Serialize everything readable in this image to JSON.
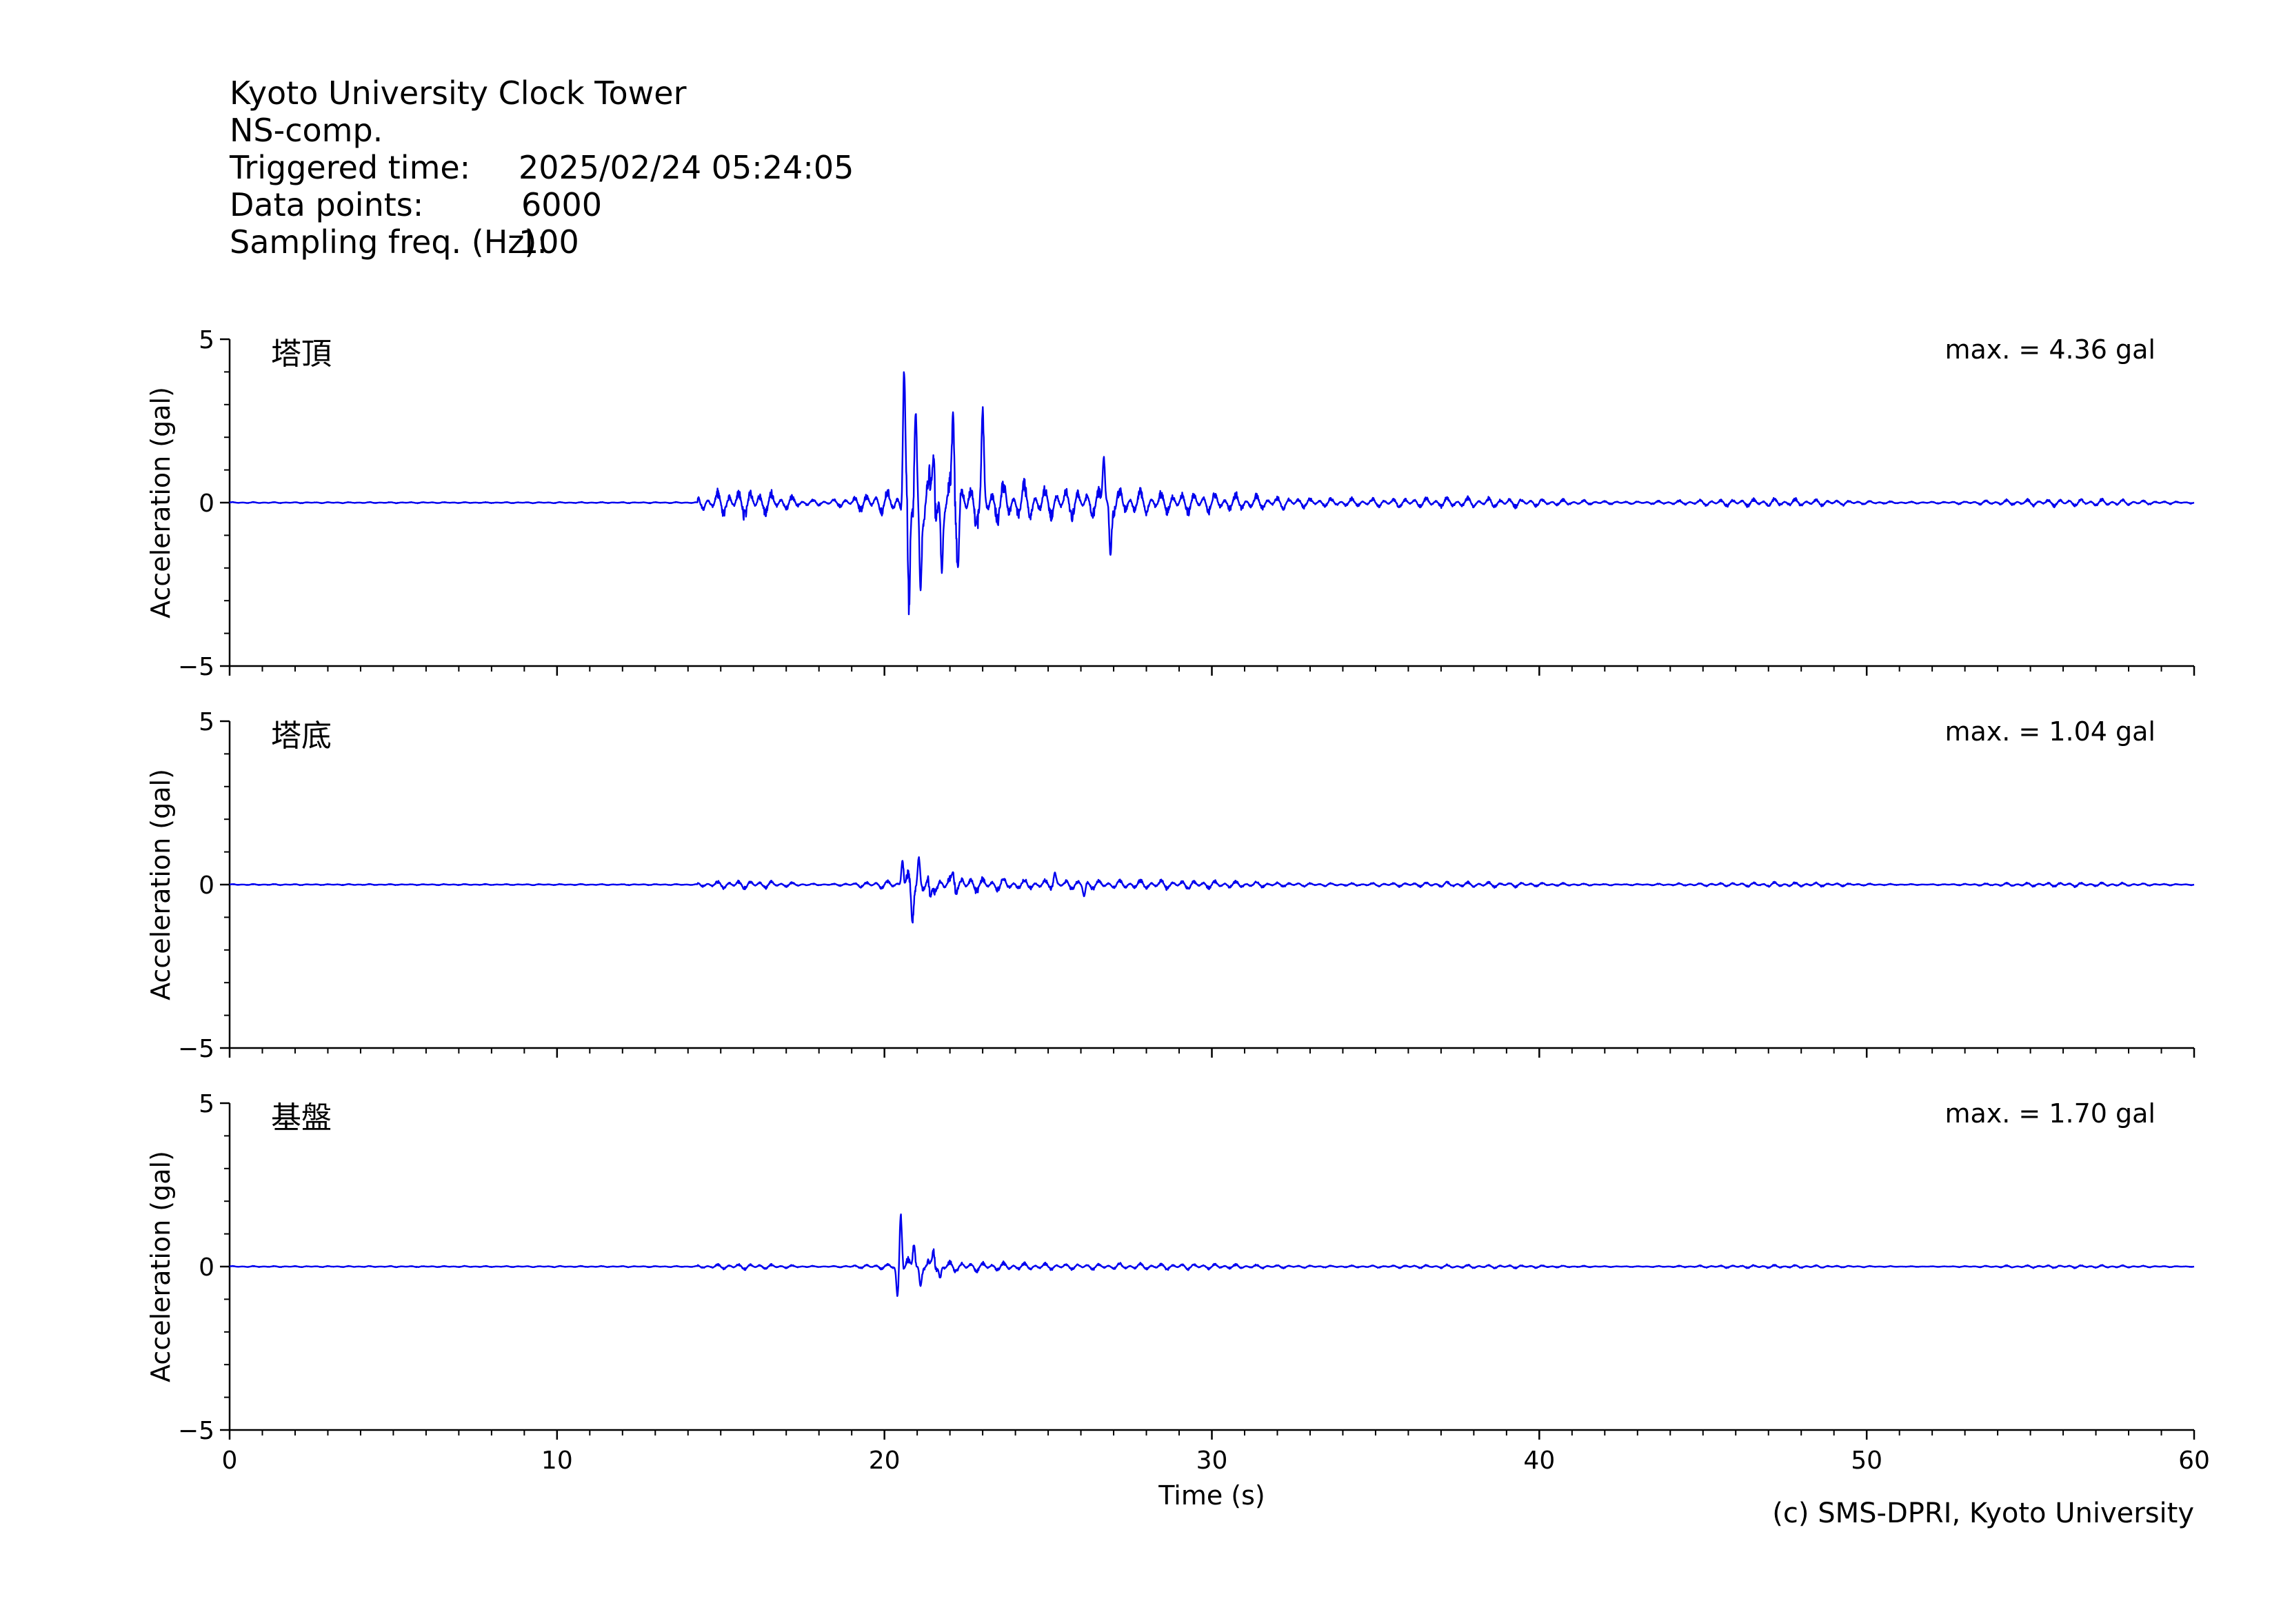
{
  "header": {
    "station": "Kyoto University Clock Tower",
    "component": "NS-comp.",
    "triggered_label": "Triggered time:",
    "triggered_value": "2025/02/24 05:24:05",
    "points_label": "Data points:",
    "points_value": "6000",
    "freq_label": "Sampling freq. (Hz):",
    "freq_value": "100"
  },
  "credit": "(c) SMS-DPRI, Kyoto University",
  "colors": {
    "trace": "#0000ee",
    "axis": "#000000"
  },
  "chart_data": [
    {
      "type": "line",
      "name": "塔頂",
      "max_label": "max. = 4.36 gal",
      "ylabel": "Acceleration (gal)",
      "xlabel": "",
      "xlim": [
        0,
        60
      ],
      "ylim": [
        -5,
        5
      ],
      "yticks": [
        -5,
        0,
        5
      ],
      "ytick_labels": [
        "−5",
        "0",
        "5"
      ],
      "xticks": [
        0,
        10,
        20,
        30,
        40,
        50,
        60
      ],
      "xtick_labels": [],
      "waveform": {
        "onset_s": 14.3,
        "pre_amp": 0.4,
        "main_s": 20.6,
        "peaks": [
          [
            20.6,
            4.36
          ],
          [
            20.75,
            -4.0
          ],
          [
            20.95,
            3.3
          ],
          [
            21.1,
            -2.7
          ],
          [
            21.5,
            1.9
          ],
          [
            21.75,
            -2.3
          ],
          [
            22.1,
            2.9
          ],
          [
            22.25,
            -1.6
          ],
          [
            23.0,
            2.2
          ],
          [
            26.7,
            1.5
          ],
          [
            26.9,
            -1.6
          ]
        ],
        "decay_end_s": 60,
        "tail_amp": 0.1
      }
    },
    {
      "type": "line",
      "name": "塔底",
      "max_label": "max. = 1.04 gal",
      "ylabel": "Acceleration (gal)",
      "xlabel": "",
      "xlim": [
        0,
        60
      ],
      "ylim": [
        -5,
        5
      ],
      "yticks": [
        -5,
        0,
        5
      ],
      "ytick_labels": [
        "−5",
        "0",
        "5"
      ],
      "xticks": [
        0,
        10,
        20,
        30,
        40,
        50,
        60
      ],
      "xtick_labels": [],
      "waveform": {
        "onset_s": 14.3,
        "pre_amp": 0.12,
        "main_s": 20.6,
        "peaks": [
          [
            20.55,
            0.8
          ],
          [
            20.85,
            -1.04
          ],
          [
            21.05,
            0.75
          ],
          [
            21.4,
            -0.6
          ],
          [
            22.1,
            0.4
          ],
          [
            25.2,
            0.35
          ],
          [
            26.1,
            -0.35
          ]
        ],
        "decay_end_s": 60,
        "tail_amp": 0.06
      }
    },
    {
      "type": "line",
      "name": "基盤",
      "max_label": "max. = 1.70 gal",
      "ylabel": "Acceleration (gal)",
      "xlabel": "Time (s)",
      "xlim": [
        0,
        60
      ],
      "ylim": [
        -5,
        5
      ],
      "yticks": [
        -5,
        0,
        5
      ],
      "ytick_labels": [
        "−5",
        "0",
        "5"
      ],
      "xticks": [
        0,
        10,
        20,
        30,
        40,
        50,
        60
      ],
      "xtick_labels": [
        "0",
        "10",
        "20",
        "30",
        "40",
        "50",
        "60"
      ],
      "waveform": {
        "onset_s": 14.3,
        "pre_amp": 0.08,
        "main_s": 20.4,
        "peaks": [
          [
            20.5,
            1.7
          ],
          [
            20.4,
            -0.95
          ],
          [
            20.9,
            0.8
          ],
          [
            21.1,
            -0.6
          ],
          [
            21.5,
            0.6
          ],
          [
            21.7,
            -0.4
          ]
        ],
        "decay_end_s": 60,
        "tail_amp": 0.04
      }
    }
  ]
}
